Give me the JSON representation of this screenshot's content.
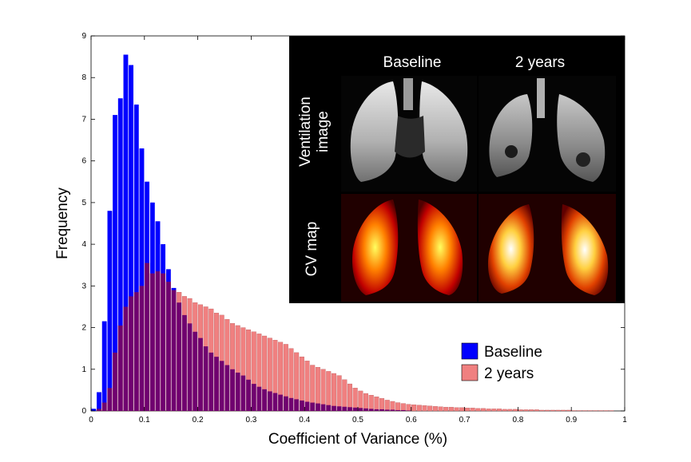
{
  "chart_data": {
    "type": "bar",
    "xlabel": "Coefficient of Variance (%)",
    "ylabel": "Frequency",
    "xlim": [
      0,
      1
    ],
    "ylim": [
      0,
      9
    ],
    "xticks": [
      0,
      0.1,
      0.2,
      0.3,
      0.4,
      0.5,
      0.6,
      0.7,
      0.8,
      0.9,
      1
    ],
    "xtick_labels": [
      "0",
      "0.1",
      "0.2",
      "0.3",
      "0.4",
      "0.5",
      "0.6",
      "0.7",
      "0.8",
      "0.9",
      "1"
    ],
    "yticks": [
      0,
      1,
      2,
      3,
      4,
      5,
      6,
      7,
      8,
      9
    ],
    "ytick_labels": [
      "0",
      "1",
      "2",
      "3",
      "4",
      "5",
      "6",
      "7",
      "8",
      "9"
    ],
    "bin_width": 0.01,
    "legend_position": "lower-right",
    "grid": false,
    "series": [
      {
        "name": "Baseline",
        "color": "#0000ff",
        "x": [
          0.005,
          0.015,
          0.025,
          0.035,
          0.045,
          0.055,
          0.065,
          0.075,
          0.085,
          0.095,
          0.105,
          0.115,
          0.125,
          0.135,
          0.145,
          0.155,
          0.165,
          0.175,
          0.185,
          0.195,
          0.205,
          0.215,
          0.225,
          0.235,
          0.245,
          0.255,
          0.265,
          0.275,
          0.285,
          0.295,
          0.305,
          0.315,
          0.325,
          0.335,
          0.345,
          0.355,
          0.365,
          0.375,
          0.385,
          0.395,
          0.405,
          0.415,
          0.425,
          0.435,
          0.445,
          0.455,
          0.465,
          0.475,
          0.485,
          0.495,
          0.505,
          0.515,
          0.525,
          0.535,
          0.545,
          0.555,
          0.565,
          0.575,
          0.585,
          0.595
        ],
        "values": [
          0.05,
          0.45,
          2.15,
          4.8,
          7.1,
          7.5,
          8.55,
          8.3,
          7.35,
          6.3,
          5.5,
          5.0,
          4.55,
          4.0,
          3.4,
          2.95,
          2.6,
          2.3,
          2.1,
          1.9,
          1.75,
          1.55,
          1.4,
          1.3,
          1.2,
          1.1,
          1.0,
          0.92,
          0.85,
          0.75,
          0.65,
          0.58,
          0.52,
          0.47,
          0.43,
          0.39,
          0.35,
          0.31,
          0.28,
          0.25,
          0.22,
          0.2,
          0.18,
          0.16,
          0.14,
          0.12,
          0.11,
          0.1,
          0.09,
          0.08,
          0.07,
          0.06,
          0.05,
          0.04,
          0.04,
          0.03,
          0.03,
          0.02,
          0.02,
          0.01
        ]
      },
      {
        "name": "2 years",
        "color": "#f08080",
        "x": [
          0.005,
          0.015,
          0.025,
          0.035,
          0.045,
          0.055,
          0.065,
          0.075,
          0.085,
          0.095,
          0.105,
          0.115,
          0.125,
          0.135,
          0.145,
          0.155,
          0.165,
          0.175,
          0.185,
          0.195,
          0.205,
          0.215,
          0.225,
          0.235,
          0.245,
          0.255,
          0.265,
          0.275,
          0.285,
          0.295,
          0.305,
          0.315,
          0.325,
          0.335,
          0.345,
          0.355,
          0.365,
          0.375,
          0.385,
          0.395,
          0.405,
          0.415,
          0.425,
          0.435,
          0.445,
          0.455,
          0.465,
          0.475,
          0.485,
          0.495,
          0.505,
          0.515,
          0.525,
          0.535,
          0.545,
          0.555,
          0.565,
          0.575,
          0.585,
          0.595,
          0.605,
          0.615,
          0.625,
          0.635,
          0.645,
          0.655,
          0.665,
          0.675,
          0.685,
          0.695,
          0.705,
          0.715,
          0.725,
          0.735,
          0.745,
          0.755,
          0.765,
          0.775,
          0.785,
          0.795,
          0.805,
          0.815,
          0.825,
          0.835,
          0.845,
          0.855,
          0.865,
          0.875,
          0.885,
          0.895,
          0.905,
          0.915,
          0.925,
          0.935,
          0.945,
          0.955,
          0.965,
          0.975,
          0.985,
          0.995
        ],
        "values": [
          0.0,
          0.05,
          0.2,
          0.55,
          1.4,
          2.05,
          2.5,
          2.75,
          2.85,
          3.0,
          3.55,
          3.3,
          3.35,
          3.3,
          3.1,
          2.9,
          2.85,
          2.75,
          2.7,
          2.6,
          2.55,
          2.5,
          2.45,
          2.35,
          2.3,
          2.2,
          2.1,
          2.05,
          2.0,
          1.95,
          1.9,
          1.85,
          1.8,
          1.75,
          1.7,
          1.65,
          1.6,
          1.5,
          1.4,
          1.3,
          1.2,
          1.1,
          1.05,
          1.0,
          0.95,
          0.9,
          0.85,
          0.75,
          0.65,
          0.55,
          0.48,
          0.42,
          0.38,
          0.34,
          0.3,
          0.26,
          0.23,
          0.2,
          0.18,
          0.16,
          0.15,
          0.14,
          0.13,
          0.12,
          0.11,
          0.1,
          0.09,
          0.09,
          0.08,
          0.08,
          0.07,
          0.07,
          0.06,
          0.06,
          0.05,
          0.05,
          0.05,
          0.04,
          0.04,
          0.04,
          0.03,
          0.03,
          0.03,
          0.03,
          0.02,
          0.02,
          0.02,
          0.02,
          0.02,
          0.02,
          0.01,
          0.01,
          0.01,
          0.01,
          0.01,
          0.01,
          0.01,
          0.01,
          0.0,
          0.0
        ]
      }
    ],
    "overlap_color": "#700070"
  },
  "inset": {
    "column_labels": [
      "Baseline",
      "2 years"
    ],
    "row_labels": [
      "Ventilation image",
      "CV map"
    ],
    "row_label_lines": [
      [
        "Ventilation",
        "image"
      ],
      [
        "CV map"
      ]
    ]
  }
}
